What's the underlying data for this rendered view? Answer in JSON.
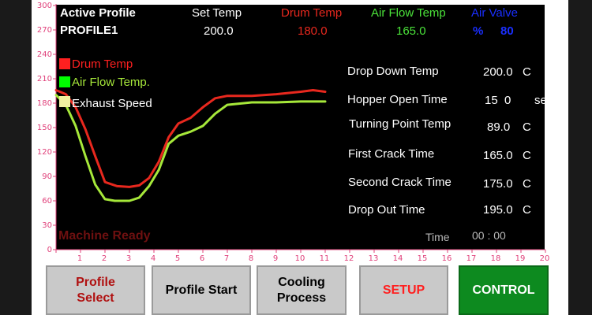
{
  "header": {
    "active_profile_label": "Active Profile",
    "active_profile_value": "PROFILE1",
    "set_temp_label": "Set Temp",
    "set_temp_value": "200.0",
    "drum_temp_label": "Drum Temp",
    "drum_temp_value": "180.0",
    "air_flow_temp_label": "Air Flow Temp",
    "air_flow_temp_value": "165.0",
    "air_valve_label": "Air Valve",
    "air_valve_unit": "%",
    "air_valve_value": "80"
  },
  "legend": [
    {
      "label": "Drum Temp",
      "color": "#ff2020",
      "swatch_color": "#ff2020"
    },
    {
      "label": "Air Flow Temp.",
      "color": "#a6e83a",
      "swatch_color": "#00ff00"
    },
    {
      "label": "Exhaust Speed",
      "color": "#ffffff",
      "swatch_color": "#f0f0a0"
    }
  ],
  "params": [
    {
      "label": "Drop Down Temp",
      "value": "200.0",
      "unit": "C"
    },
    {
      "label": "Hopper Open Time",
      "value": "15  0",
      "unit": "se"
    },
    {
      "label": "Turning Point Temp",
      "value": "89.0",
      "unit": "C"
    },
    {
      "label": "First Crack Time",
      "value": "165.0",
      "unit": "C"
    },
    {
      "label": "Second Crack Time",
      "value": "175.0",
      "unit": "C"
    },
    {
      "label": "Drop Out Time",
      "value": "195.0",
      "unit": "C"
    }
  ],
  "status": {
    "text": "Machine Ready",
    "time_label": "Time",
    "time_value": "00 : 00"
  },
  "buttons": [
    {
      "label": "Profile\nSelect",
      "color": "#b01010"
    },
    {
      "label": "Profile Start",
      "color": "#000000"
    },
    {
      "label": "Cooling\nProcess",
      "color": "#000000"
    },
    {
      "label": "SETUP",
      "color": "#ff2020"
    },
    {
      "label": "CONTROL",
      "color": "#ffffff"
    }
  ],
  "chart_data": {
    "type": "line",
    "xlim": [
      0,
      20
    ],
    "ylim": [
      0,
      300
    ],
    "x_ticks": [
      "1",
      "2",
      "3",
      "4",
      "5",
      "6",
      "7",
      "8",
      "9",
      "10",
      "11",
      "12",
      "13",
      "14",
      "15",
      "16",
      "17",
      "18",
      "19",
      "20"
    ],
    "y_ticks": [
      "0",
      "30",
      "60",
      "90",
      "120",
      "150",
      "180",
      "210",
      "240",
      "270",
      "300"
    ],
    "series": [
      {
        "name": "Drum Temp",
        "color": "#e8281e",
        "x": [
          0,
          0.4,
          0.8,
          1.2,
          1.6,
          2.0,
          2.5,
          3.0,
          3.4,
          3.8,
          4.2,
          4.6,
          5.0,
          5.5,
          6.0,
          6.5,
          7.0,
          8.0,
          9.0,
          10.0,
          10.5,
          11.0
        ],
        "y": [
          196,
          191,
          175,
          148,
          115,
          83,
          78,
          77,
          79,
          88,
          108,
          138,
          155,
          162,
          175,
          186,
          189,
          189,
          191,
          194,
          196,
          194
        ]
      },
      {
        "name": "Air Flow Temp.",
        "color": "#a6e83a",
        "x": [
          0,
          0.4,
          0.8,
          1.2,
          1.6,
          2.0,
          2.4,
          3.0,
          3.4,
          3.8,
          4.2,
          4.6,
          5.0,
          5.5,
          6.0,
          6.5,
          7.0,
          8.0,
          9.0,
          10.0,
          11.0
        ],
        "y": [
          190,
          178,
          152,
          115,
          80,
          62,
          60,
          60,
          64,
          78,
          98,
          130,
          140,
          145,
          152,
          167,
          178,
          181,
          181,
          182,
          182
        ]
      }
    ]
  }
}
